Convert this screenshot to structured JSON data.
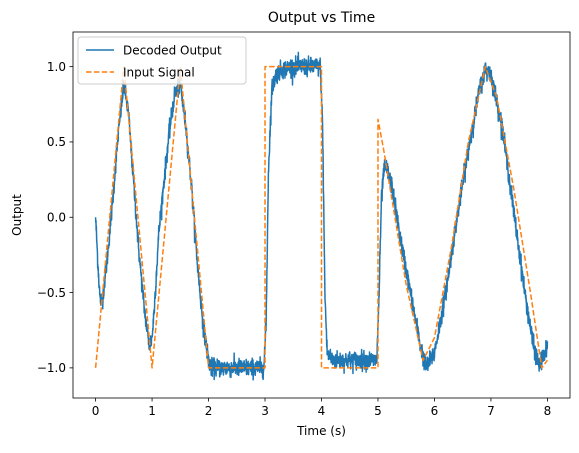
{
  "chart_data": {
    "type": "line",
    "title": "Output vs Time",
    "xlabel": "Time (s)",
    "ylabel": "Output",
    "xlim": [
      -0.4,
      8.4
    ],
    "ylim": [
      -1.2,
      1.23
    ],
    "xticks": [
      0,
      1,
      2,
      3,
      4,
      5,
      6,
      7,
      8
    ],
    "xtick_labels": [
      "0",
      "1",
      "2",
      "3",
      "4",
      "5",
      "6",
      "7",
      "8"
    ],
    "yticks": [
      -1.0,
      -0.5,
      0.0,
      0.5,
      1.0
    ],
    "ytick_labels": [
      "−1.0",
      "−0.5",
      "0.0",
      "0.5",
      "1.0"
    ],
    "grid": false,
    "legend_position": "upper-left",
    "series": [
      {
        "name": "Decoded Output",
        "color": "#1f77b4",
        "style": "solid",
        "noisy": true,
        "x": [
          0.0,
          0.04,
          0.08,
          0.12,
          0.2,
          0.3,
          0.4,
          0.5,
          0.58,
          0.66,
          0.76,
          0.86,
          0.95,
          1.0,
          1.04,
          1.08,
          1.12,
          1.2,
          1.3,
          1.4,
          1.5,
          1.6,
          1.7,
          1.8,
          1.9,
          2.0,
          2.05,
          2.1,
          2.2,
          2.4,
          2.6,
          2.8,
          2.98,
          3.02,
          3.06,
          3.12,
          3.2,
          3.3,
          3.5,
          3.7,
          3.9,
          3.98,
          4.02,
          4.06,
          4.1,
          4.2,
          4.4,
          4.6,
          4.8,
          4.98,
          5.02,
          5.06,
          5.1,
          5.15,
          5.25,
          5.4,
          5.6,
          5.75,
          5.85,
          6.0,
          6.2,
          6.4,
          6.6,
          6.8,
          6.9,
          7.0,
          7.2,
          7.4,
          7.6,
          7.75,
          7.85,
          7.95,
          8.0
        ],
        "y": [
          0.0,
          -0.3,
          -0.55,
          -0.55,
          -0.3,
          0.1,
          0.55,
          0.88,
          0.7,
          0.3,
          -0.2,
          -0.6,
          -0.85,
          -0.8,
          -0.6,
          -0.35,
          -0.1,
          0.2,
          0.55,
          0.82,
          0.88,
          0.6,
          0.2,
          -0.3,
          -0.7,
          -0.95,
          -1.0,
          -1.0,
          -1.0,
          -1.0,
          -1.0,
          -1.0,
          -1.0,
          -0.7,
          0.3,
          0.85,
          0.95,
          0.98,
          1.0,
          1.0,
          1.0,
          1.0,
          0.6,
          -0.5,
          -0.9,
          -0.95,
          -0.95,
          -0.95,
          -0.95,
          -0.95,
          -0.5,
          0.1,
          0.3,
          0.33,
          0.2,
          -0.15,
          -0.55,
          -0.85,
          -1.0,
          -0.9,
          -0.5,
          0.0,
          0.45,
          0.85,
          0.98,
          0.95,
          0.6,
          0.05,
          -0.5,
          -0.85,
          -0.98,
          -0.92,
          -0.85
        ]
      },
      {
        "name": "Input Signal",
        "color": "#ff7f0e",
        "style": "dashed",
        "noisy": false,
        "x": [
          0.0,
          0.5,
          1.0,
          1.5,
          2.0,
          2.1,
          2.3,
          3.0,
          3.0,
          3.3,
          4.0,
          4.0,
          4.3,
          5.0,
          5.0,
          5.1,
          5.3,
          5.5,
          5.8,
          6.0,
          6.3,
          6.6,
          6.9,
          7.1,
          7.4,
          7.7,
          7.9,
          8.0
        ],
        "y": [
          -1.0,
          1.0,
          -1.0,
          1.0,
          -1.0,
          -1.0,
          -1.0,
          -1.0,
          1.0,
          1.0,
          1.0,
          -1.0,
          -1.0,
          -1.0,
          0.65,
          0.45,
          0.0,
          -0.45,
          -0.95,
          -0.8,
          -0.2,
          0.5,
          1.0,
          0.8,
          0.2,
          -0.5,
          -1.0,
          -0.95
        ]
      }
    ]
  }
}
